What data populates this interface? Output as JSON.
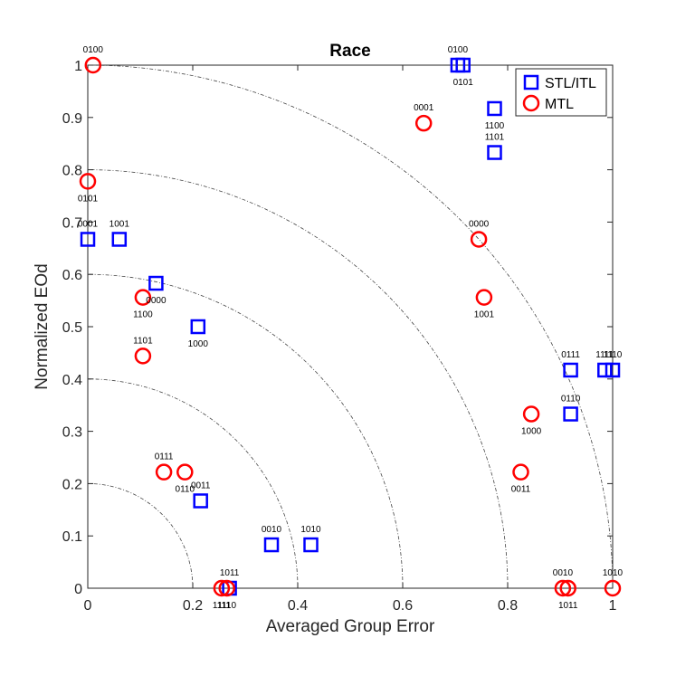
{
  "chart_data": {
    "type": "scatter",
    "title": "Race",
    "xlabel": "Averaged Group Error",
    "ylabel": "Normalized EOd",
    "xlim": [
      0,
      1
    ],
    "ylim": [
      0,
      1
    ],
    "x_ticks": [
      "0",
      "0.2",
      "0.4",
      "0.6",
      "0.8",
      "1"
    ],
    "y_ticks": [
      "0",
      "0.1",
      "0.2",
      "0.3",
      "0.4",
      "0.5",
      "0.6",
      "0.7",
      "0.8",
      "0.9",
      "1"
    ],
    "reference_arcs": [
      0.2,
      0.4,
      0.6,
      0.8,
      1.0
    ],
    "legend_position": "top-right",
    "series": [
      {
        "name": "STL/ITL",
        "marker": "square",
        "color": "#0000FF",
        "points": [
          {
            "x": 0.0,
            "y": 0.667,
            "label": "0001"
          },
          {
            "x": 0.06,
            "y": 0.667,
            "label": "1001"
          },
          {
            "x": 0.13,
            "y": 0.583,
            "label": "0000"
          },
          {
            "x": 0.21,
            "y": 0.5,
            "label": "1000"
          },
          {
            "x": 0.215,
            "y": 0.167,
            "label": "0011"
          },
          {
            "x": 0.27,
            "y": 0.0,
            "label": "1011"
          },
          {
            "x": 0.35,
            "y": 0.083,
            "label": "0010"
          },
          {
            "x": 0.425,
            "y": 0.083,
            "label": "1010"
          },
          {
            "x": 0.705,
            "y": 1.0,
            "label": "0100"
          },
          {
            "x": 0.715,
            "y": 1.0,
            "label": "0101"
          },
          {
            "x": 0.775,
            "y": 0.917,
            "label": "1100"
          },
          {
            "x": 0.775,
            "y": 0.833,
            "label": "1101"
          },
          {
            "x": 0.92,
            "y": 0.417,
            "label": "0111"
          },
          {
            "x": 0.92,
            "y": 0.333,
            "label": "0110"
          },
          {
            "x": 0.985,
            "y": 0.417,
            "label": "1111"
          },
          {
            "x": 1.0,
            "y": 0.417,
            "label": "1110"
          }
        ]
      },
      {
        "name": "MTL",
        "marker": "circle",
        "color": "#FF0000",
        "points": [
          {
            "x": 0.01,
            "y": 1.0,
            "label": "0100"
          },
          {
            "x": 0.0,
            "y": 0.778,
            "label": "0101"
          },
          {
            "x": 0.105,
            "y": 0.556,
            "label": "1100"
          },
          {
            "x": 0.105,
            "y": 0.444,
            "label": "1101"
          },
          {
            "x": 0.145,
            "y": 0.222,
            "label": "0111"
          },
          {
            "x": 0.185,
            "y": 0.222,
            "label": "0110"
          },
          {
            "x": 0.255,
            "y": 0.0,
            "label": "1111"
          },
          {
            "x": 0.265,
            "y": 0.0,
            "label": "1110"
          },
          {
            "x": 0.64,
            "y": 0.889,
            "label": "0001"
          },
          {
            "x": 0.745,
            "y": 0.667,
            "label": "0000"
          },
          {
            "x": 0.755,
            "y": 0.556,
            "label": "1001"
          },
          {
            "x": 0.845,
            "y": 0.333,
            "label": "1000"
          },
          {
            "x": 0.825,
            "y": 0.222,
            "label": "0011"
          },
          {
            "x": 0.905,
            "y": 0.0,
            "label": "0010"
          },
          {
            "x": 0.915,
            "y": 0.0,
            "label": "1011"
          },
          {
            "x": 1.0,
            "y": 0.0,
            "label": "1010"
          }
        ]
      }
    ]
  }
}
